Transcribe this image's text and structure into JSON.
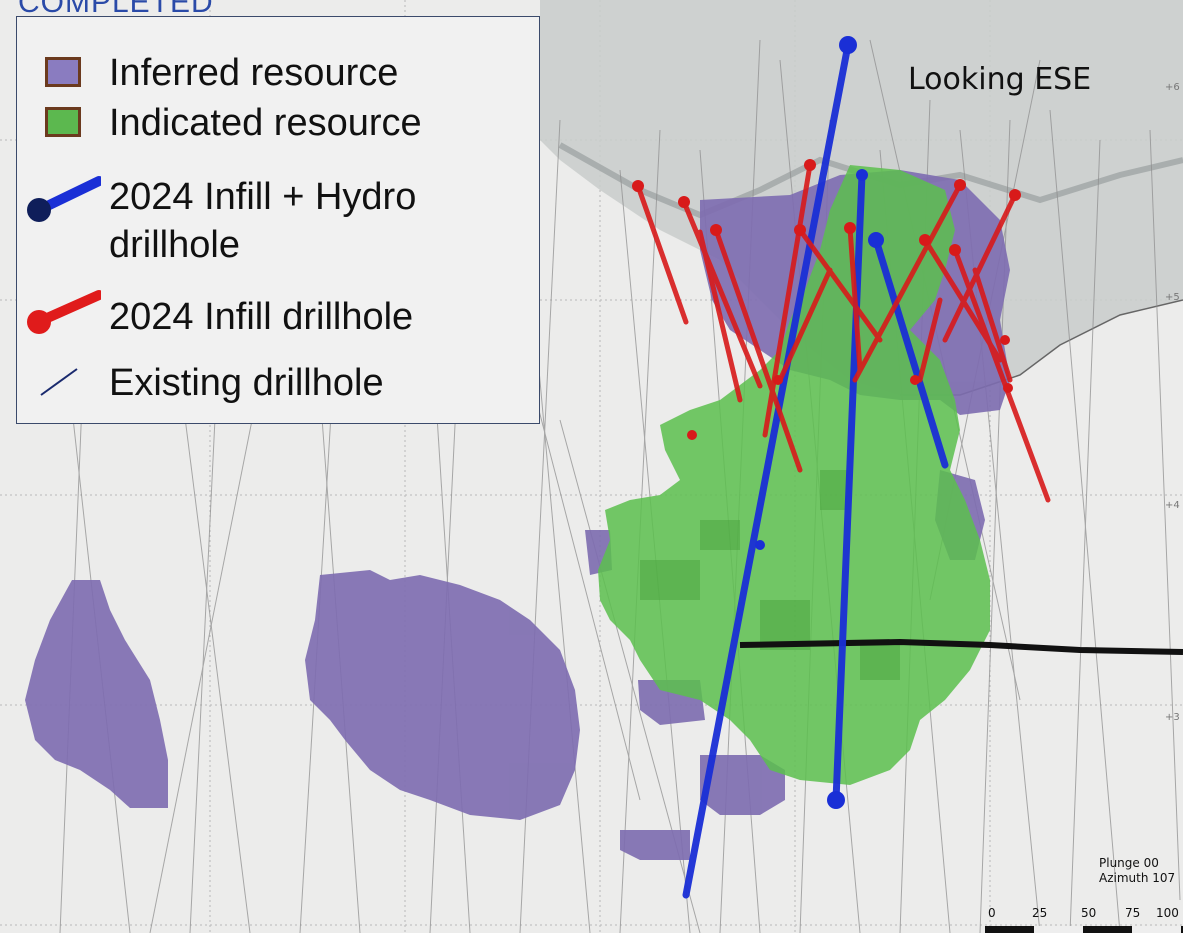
{
  "header": {
    "status_label": "COMPLETED"
  },
  "view": {
    "orientation_label": "Looking ESE"
  },
  "legend": {
    "items": [
      {
        "label": "Inferred resource",
        "color": "#8a7cc0",
        "border": "#6b3a1e"
      },
      {
        "label": "Indicated resource",
        "color": "#5cb84f",
        "border": "#6b3a1e"
      },
      {
        "label": "2024 Infill + Hydro",
        "label2": "drillhole",
        "color": "#1a2fd6",
        "icon": "blue-drillhole-icon"
      },
      {
        "label": "2024 Infill drillhole",
        "color": "#e01b1b",
        "icon": "red-drillhole-icon"
      },
      {
        "label": "Existing drillhole",
        "color": "#1a2a6e",
        "icon": "line-drillhole-icon"
      }
    ]
  },
  "orientation": {
    "plunge": "Plunge 00",
    "azimuth": "Azimuth 107"
  },
  "scale": {
    "ticks": [
      "0",
      "25",
      "50",
      "75",
      "100"
    ]
  },
  "elevation_marks": [
    "+6",
    "+5",
    "+4",
    "+3"
  ],
  "colors": {
    "background": "#ececeb",
    "terrain": "#c8cbcb",
    "inferred": "#7d6cb0",
    "indicated": "#5cbf4e",
    "hydro_drillhole": "#1a2fd6",
    "infill_drillhole": "#d81a1a",
    "existing_drillhole": "#8a8a8a"
  }
}
